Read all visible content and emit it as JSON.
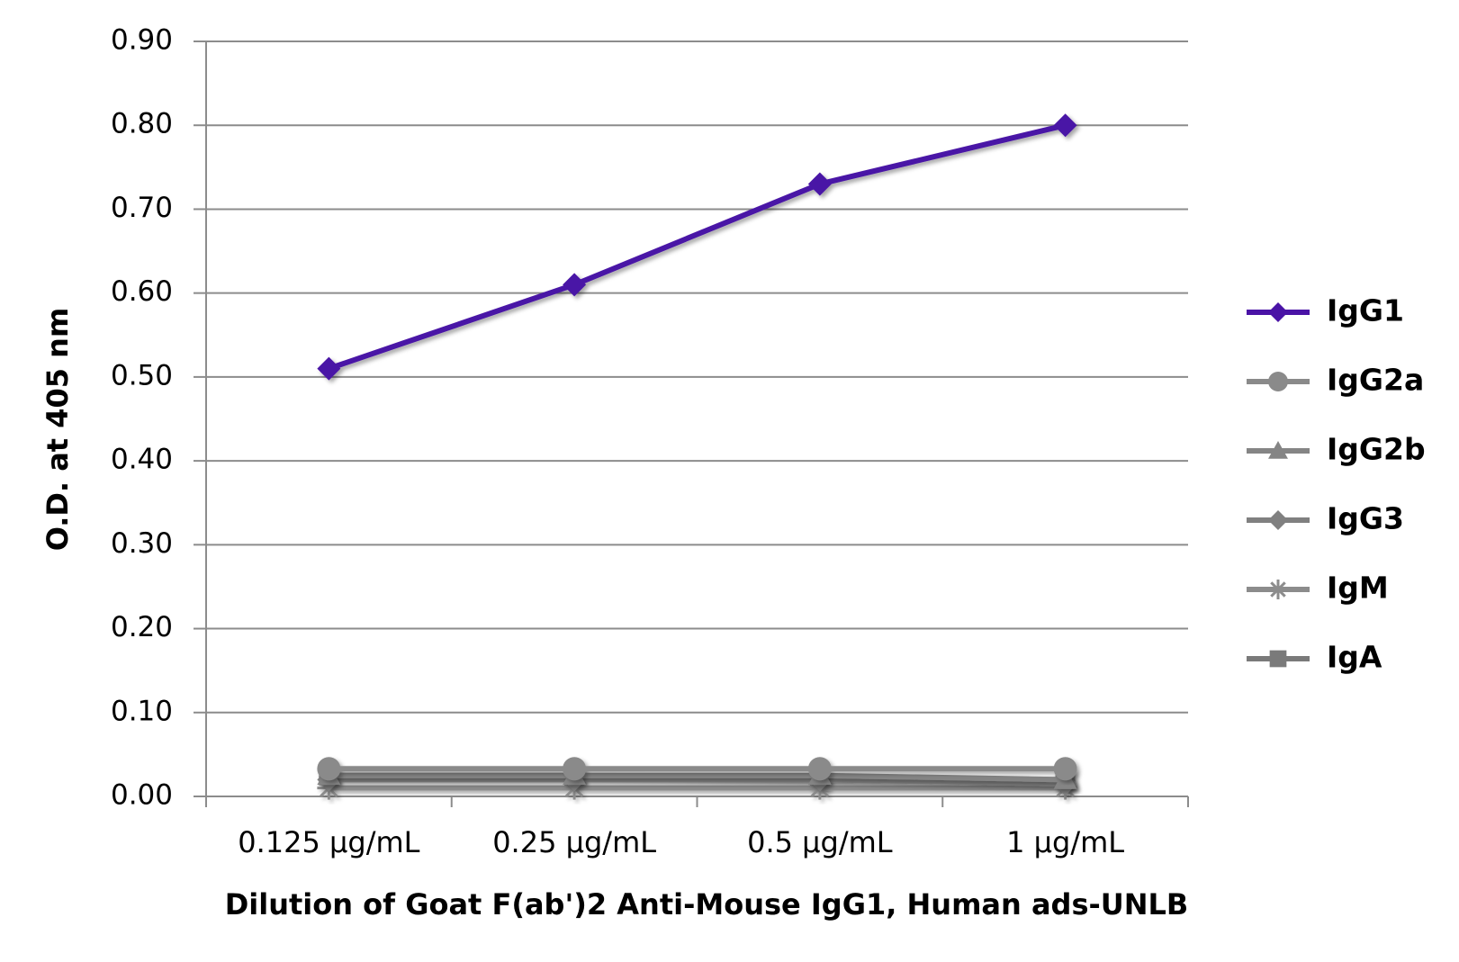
{
  "chart_data": {
    "type": "line",
    "y_label": "O.D. at 405 nm",
    "x_label": "Dilution of Goat F(ab')2 Anti-Mouse IgG1, Human ads-UNLB",
    "categories": [
      "0.125 µg/mL",
      "0.25 µg/mL",
      "0.5 µg/mL",
      "1 µg/mL"
    ],
    "ylim": [
      0,
      0.9
    ],
    "yticks": [
      {
        "value": 0,
        "label": "0.00"
      },
      {
        "value": 0.1,
        "label": "0.10"
      },
      {
        "value": 0.2,
        "label": "0.20"
      },
      {
        "value": 0.3,
        "label": "0.30"
      },
      {
        "value": 0.4,
        "label": "0.40"
      },
      {
        "value": 0.5,
        "label": "0.50"
      },
      {
        "value": 0.6,
        "label": "0.60"
      },
      {
        "value": 0.7,
        "label": "0.70"
      },
      {
        "value": 0.8,
        "label": "0.80"
      },
      {
        "value": 0.9,
        "label": "0.90"
      }
    ],
    "grid": true,
    "legend": "right",
    "series": [
      {
        "name": "IgG1",
        "color": "#4a13a6",
        "marker": "diamond",
        "values": [
          0.51,
          0.61,
          0.73,
          0.8
        ]
      },
      {
        "name": "IgG2a",
        "color": "#8a8a8a",
        "marker": "circle",
        "values": [
          0.033,
          0.033,
          0.033,
          0.033
        ]
      },
      {
        "name": "IgG2b",
        "color": "#858585",
        "marker": "triangle",
        "values": [
          0.025,
          0.025,
          0.025,
          0.02
        ]
      },
      {
        "name": "IgG3",
        "color": "#808080",
        "marker": "diamond",
        "values": [
          0.02,
          0.02,
          0.02,
          0.015
        ]
      },
      {
        "name": "IgM",
        "color": "#8c8c8c",
        "marker": "asterisk",
        "values": [
          0.01,
          0.01,
          0.01,
          0.01
        ]
      },
      {
        "name": "IgA",
        "color": "#7a7a7a",
        "marker": "square",
        "values": [
          0.025,
          0.025,
          0.02,
          0.02
        ]
      }
    ]
  }
}
